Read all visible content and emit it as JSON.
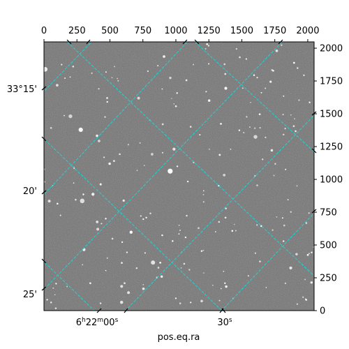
{
  "chart_data": {
    "type": "image",
    "title": "",
    "xlabel": "pos.eq.ra",
    "ylabel": "",
    "pixel_axes": {
      "x_range": [
        0,
        2048
      ],
      "y_range": [
        0,
        2048
      ],
      "top_ticks": [
        0,
        250,
        500,
        750,
        1000,
        1250,
        1500,
        1750,
        2000
      ],
      "right_ticks": [
        0,
        250,
        500,
        750,
        1000,
        1250,
        1500,
        1750,
        2000
      ]
    },
    "world_axes": {
      "ra_tick_labels": [
        "6h22m00s",
        "30s"
      ],
      "dec_tick_labels": [
        "33°15'",
        "20'",
        "25'"
      ]
    },
    "grid": true,
    "grid_color": "#22d0d0",
    "background_color": "#747474"
  }
}
